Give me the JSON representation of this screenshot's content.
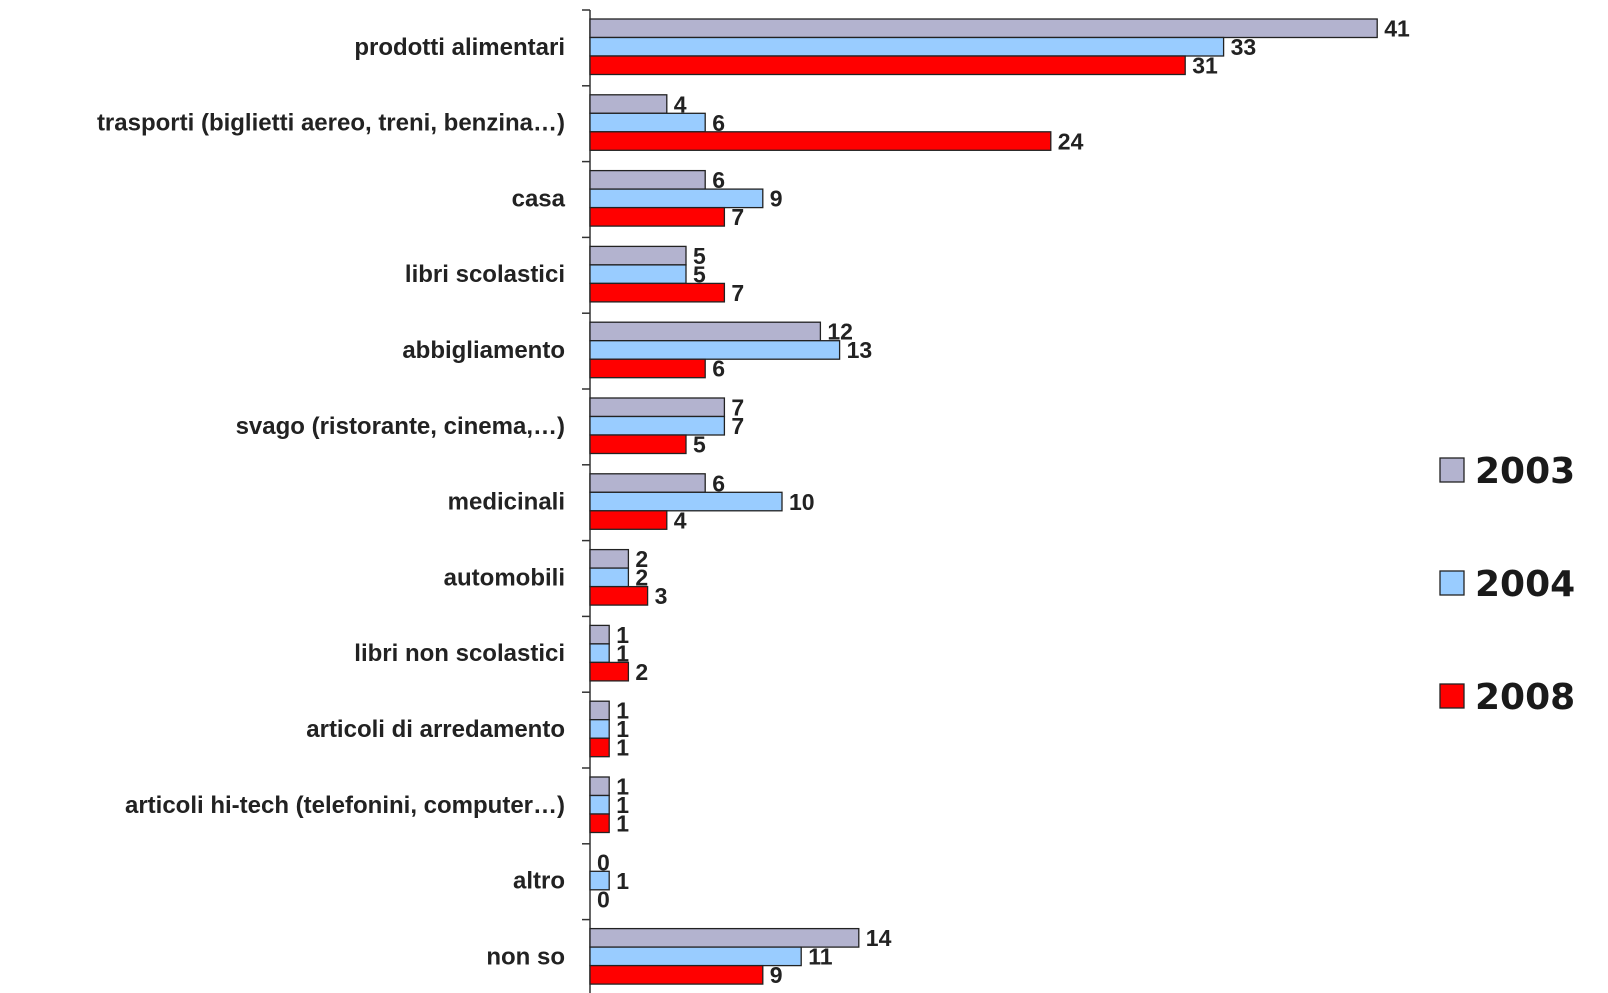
{
  "chart_data": {
    "type": "bar",
    "orientation": "horizontal",
    "categories": [
      "prodotti alimentari",
      "trasporti (biglietti aereo, treni, benzina…)",
      "casa",
      "libri scolastici",
      "abbigliamento",
      "svago (ristorante, cinema,…)",
      "medicinali",
      "automobili",
      "libri non scolastici",
      "articoli di arredamento",
      "articoli hi-tech (telefonini, computer…)",
      "altro",
      "non so"
    ],
    "series": [
      {
        "name": "2003",
        "color": "#b3b3cf",
        "values": [
          41,
          4,
          6,
          5,
          12,
          7,
          6,
          2,
          1,
          1,
          1,
          0,
          14
        ]
      },
      {
        "name": "2004",
        "color": "#99ccff",
        "values": [
          33,
          6,
          9,
          5,
          13,
          7,
          10,
          2,
          1,
          1,
          1,
          1,
          11
        ]
      },
      {
        "name": "2008",
        "color": "#ff0000",
        "values": [
          31,
          24,
          7,
          7,
          6,
          5,
          4,
          3,
          2,
          1,
          1,
          0,
          9
        ]
      }
    ],
    "xlim": [
      0,
      41
    ],
    "grid": false,
    "legend_position": "right",
    "data_labels": true,
    "title": "",
    "xlabel": "",
    "ylabel": ""
  }
}
